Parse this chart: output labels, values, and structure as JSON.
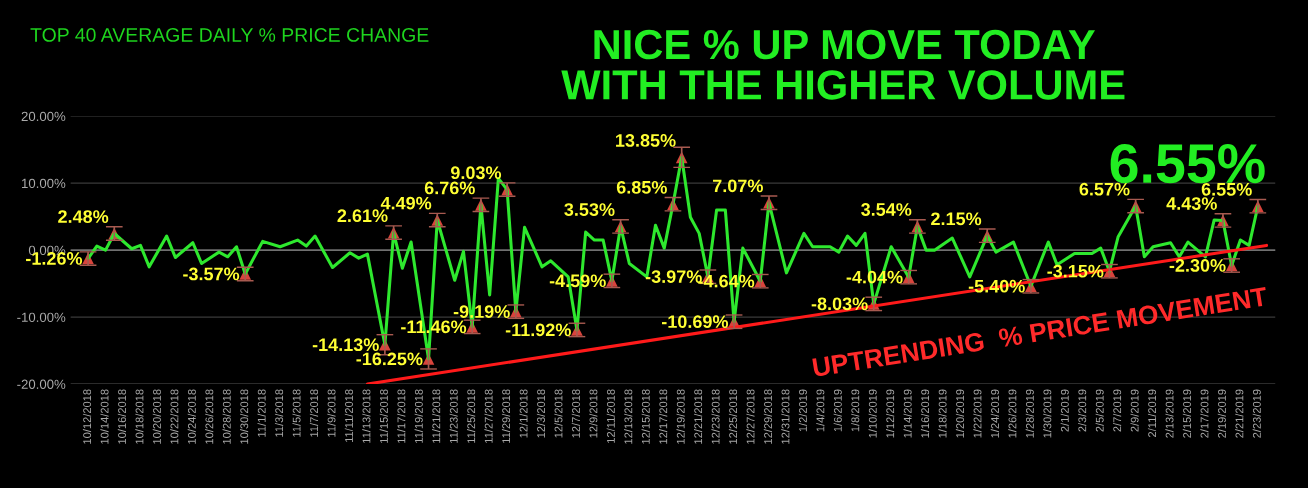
{
  "chart_data": {
    "type": "line",
    "title": "TOP 40 AVERAGE DAILY % PRICE CHANGE",
    "annotations": [
      "NICE % UP MOVE TODAY\nWITH THE HIGHER VOLUME",
      "6.55%",
      "UPTRENDING  % PRICE MOVEMENT"
    ],
    "series": [
      {
        "color": "#2ee82e",
        "x": [
          "2018-10-12",
          "2018-10-13",
          "2018-10-14",
          "2018-10-15",
          "2018-10-17",
          "2018-10-18",
          "2018-10-19",
          "2018-10-21",
          "2018-10-22",
          "2018-10-24",
          "2018-10-25",
          "2018-10-27",
          "2018-10-28",
          "2018-10-29",
          "2018-10-30",
          "2018-11-01",
          "2018-11-03",
          "2018-11-05",
          "2018-11-06",
          "2018-11-07",
          "2018-11-09",
          "2018-11-11",
          "2018-11-12",
          "2018-11-13",
          "2018-11-15",
          "2018-11-16",
          "2018-11-17",
          "2018-11-18",
          "2018-11-20",
          "2018-11-21",
          "2018-11-23",
          "2018-11-24",
          "2018-11-25",
          "2018-11-26",
          "2018-11-27",
          "2018-11-28",
          "2018-11-29",
          "2018-11-30",
          "2018-12-01",
          "2018-12-03",
          "2018-12-04",
          "2018-12-06",
          "2018-12-07",
          "2018-12-08",
          "2018-12-09",
          "2018-12-10",
          "2018-12-11",
          "2018-12-12",
          "2018-12-13",
          "2018-12-15",
          "2018-12-16",
          "2018-12-17",
          "2018-12-18",
          "2018-12-19",
          "2018-12-20",
          "2018-12-21",
          "2018-12-22",
          "2018-12-23",
          "2018-12-24",
          "2018-12-25",
          "2018-12-26",
          "2018-12-28",
          "2018-12-29",
          "2018-12-31",
          "2019-01-02",
          "2019-01-03",
          "2019-01-05",
          "2019-01-06",
          "2019-01-07",
          "2019-01-08",
          "2019-01-09",
          "2019-01-10",
          "2019-01-12",
          "2019-01-14",
          "2019-01-15",
          "2019-01-16",
          "2019-01-17",
          "2019-01-19",
          "2019-01-21",
          "2019-01-23",
          "2019-01-24",
          "2019-01-26",
          "2019-01-28",
          "2019-01-30",
          "2019-01-31",
          "2019-02-02",
          "2019-02-04",
          "2019-02-05",
          "2019-02-06",
          "2019-02-07",
          "2019-02-09",
          "2019-02-10",
          "2019-02-11",
          "2019-02-13",
          "2019-02-14",
          "2019-02-15",
          "2019-02-17",
          "2019-02-18",
          "2019-02-19",
          "2019-02-20",
          "2019-02-21",
          "2019-02-22",
          "2019-02-23"
        ],
        "values": [
          -1.26,
          0.6,
          0,
          2.48,
          0.2,
          0.7,
          -2.5,
          2.1,
          -1.1,
          1.1,
          -2.0,
          -0.3,
          -1.0,
          0.5,
          -3.57,
          1.3,
          0.5,
          1.5,
          0.6,
          2.1,
          -2.6,
          -0.4,
          -1.2,
          -0.6,
          -14.13,
          2.61,
          -2.7,
          1.2,
          -16.25,
          4.49,
          -4.5,
          -0.2,
          -11.46,
          6.76,
          -6.7,
          10.7,
          9.03,
          -9.19,
          3.4,
          -2.5,
          -1.6,
          -4.0,
          -11.92,
          2.7,
          1.5,
          1.5,
          -4.59,
          3.53,
          -2.0,
          -4.0,
          3.7,
          0.3,
          6.85,
          13.85,
          4.9,
          2.5,
          -3.97,
          6.0,
          6.0,
          -10.69,
          0.3,
          -4.64,
          7.07,
          -3.4,
          2.5,
          0.5,
          0.5,
          -0.3,
          2.1,
          0.7,
          2.5,
          -8.03,
          0.5,
          -4.04,
          3.54,
          0,
          0,
          1.8,
          -4.0,
          2.15,
          -0.3,
          1.2,
          -5.4,
          1.2,
          -2.2,
          -0.5,
          -0.5,
          0.3,
          -3.15,
          2.0,
          6.57,
          -1.0,
          0.5,
          1.1,
          -1.0,
          1.2,
          -1.0,
          4.5,
          4.43,
          -2.3,
          1.5,
          0.7,
          6.55
        ]
      },
      {
        "type": "scatter",
        "marker": "triangle",
        "color": "#d9443c",
        "x": [
          "2018-10-12",
          "2018-10-15",
          "2018-10-30",
          "2018-11-15",
          "2018-11-16",
          "2018-11-20",
          "2018-11-21",
          "2018-11-25",
          "2018-11-26",
          "2018-11-29",
          "2018-11-30",
          "2018-12-07",
          "2018-12-11",
          "2018-12-12",
          "2018-12-18",
          "2018-12-19",
          "2018-12-22",
          "2018-12-25",
          "2018-12-28",
          "2018-12-29",
          "2019-01-10",
          "2019-01-14",
          "2019-01-15",
          "2019-01-23",
          "2019-01-28",
          "2019-02-06",
          "2019-02-09",
          "2019-02-19",
          "2019-02-20",
          "2019-02-23"
        ],
        "values": [
          -1.26,
          2.48,
          -3.57,
          -14.13,
          2.61,
          -16.25,
          4.49,
          -11.46,
          6.76,
          9.03,
          -9.19,
          -11.92,
          -4.59,
          3.53,
          6.85,
          13.85,
          -3.97,
          -10.69,
          -4.64,
          7.07,
          -8.03,
          -4.04,
          3.54,
          2.15,
          -5.4,
          -3.15,
          6.57,
          4.43,
          -2.3,
          6.55
        ],
        "errors": [
          1,
          1,
          1,
          1.5,
          1,
          1.5,
          1,
          1,
          1,
          1,
          1,
          1,
          1,
          1,
          1,
          1.5,
          1,
          1,
          1,
          1,
          1,
          1,
          1,
          1,
          1,
          1,
          1,
          1,
          1,
          1
        ],
        "value_labels": [
          "-1.26%",
          "2.48%",
          "-3.57%",
          "-14.13%",
          "2.61%",
          "-16.25%",
          "4.49%",
          "-11.46%",
          "6.76%",
          "9.03%",
          "-9.19%",
          "-11.92%",
          "-4.59%",
          "3.53%",
          "6.85%",
          "13.85%",
          "-3.97%",
          "-10.69%",
          "-4.64%",
          "7.07%",
          "-8.03%",
          "-4.04%",
          "3.54%",
          "2.15%",
          "-5.40%",
          "-3.15%",
          "6.57%",
          "4.43%",
          "-2.30%",
          "6.55%"
        ]
      },
      {
        "color": "#ff1a1a",
        "x": [
          "2018-11-13",
          "2019-02-24"
        ],
        "values": [
          -20,
          0.7
        ]
      }
    ],
    "xlim": [
      "2018-10-10",
      "2019-02-25"
    ],
    "ylim": [
      -20,
      20
    ],
    "yticks": [
      {
        "value": -20,
        "label": "-20.00%"
      },
      {
        "value": -10,
        "label": "-10.00%"
      },
      {
        "value": 0,
        "label": "0.00%"
      },
      {
        "value": 10,
        "label": "10.00%"
      },
      {
        "value": 20,
        "label": "20.00%"
      }
    ],
    "xticks": [
      {
        "value": "2018-10-12",
        "label": "10/12/2018"
      },
      {
        "value": "2018-10-14",
        "label": "10/14/2018"
      },
      {
        "value": "2018-10-16",
        "label": "10/16/2018"
      },
      {
        "value": "2018-10-18",
        "label": "10/18/2018"
      },
      {
        "value": "2018-10-20",
        "label": "10/20/2018"
      },
      {
        "value": "2018-10-22",
        "label": "10/22/2018"
      },
      {
        "value": "2018-10-24",
        "label": "10/24/2018"
      },
      {
        "value": "2018-10-26",
        "label": "10/26/2018"
      },
      {
        "value": "2018-10-28",
        "label": "10/28/2018"
      },
      {
        "value": "2018-10-30",
        "label": "10/30/2018"
      },
      {
        "value": "2018-11-01",
        "label": "11/1/2018"
      },
      {
        "value": "2018-11-03",
        "label": "11/3/2018"
      },
      {
        "value": "2018-11-05",
        "label": "11/5/2018"
      },
      {
        "value": "2018-11-07",
        "label": "11/7/2018"
      },
      {
        "value": "2018-11-09",
        "label": "11/9/2018"
      },
      {
        "value": "2018-11-11",
        "label": "11/11/2018"
      },
      {
        "value": "2018-11-13",
        "label": "11/13/2018"
      },
      {
        "value": "2018-11-15",
        "label": "11/15/2018"
      },
      {
        "value": "2018-11-17",
        "label": "11/17/2018"
      },
      {
        "value": "2018-11-19",
        "label": "11/19/2018"
      },
      {
        "value": "2018-11-21",
        "label": "11/21/2018"
      },
      {
        "value": "2018-11-23",
        "label": "11/23/2018"
      },
      {
        "value": "2018-11-25",
        "label": "11/25/2018"
      },
      {
        "value": "2018-11-27",
        "label": "11/27/2018"
      },
      {
        "value": "2018-11-29",
        "label": "11/29/2018"
      },
      {
        "value": "2018-12-01",
        "label": "12/1/2018"
      },
      {
        "value": "2018-12-03",
        "label": "12/3/2018"
      },
      {
        "value": "2018-12-05",
        "label": "12/5/2018"
      },
      {
        "value": "2018-12-07",
        "label": "12/7/2018"
      },
      {
        "value": "2018-12-09",
        "label": "12/9/2018"
      },
      {
        "value": "2018-12-11",
        "label": "12/11/2018"
      },
      {
        "value": "2018-12-13",
        "label": "12/13/2018"
      },
      {
        "value": "2018-12-15",
        "label": "12/15/2018"
      },
      {
        "value": "2018-12-17",
        "label": "12/17/2018"
      },
      {
        "value": "2018-12-19",
        "label": "12/19/2018"
      },
      {
        "value": "2018-12-21",
        "label": "12/21/2018"
      },
      {
        "value": "2018-12-23",
        "label": "12/23/2018"
      },
      {
        "value": "2018-12-25",
        "label": "12/25/2018"
      },
      {
        "value": "2018-12-27",
        "label": "12/27/2018"
      },
      {
        "value": "2018-12-29",
        "label": "12/29/2018"
      },
      {
        "value": "2018-12-31",
        "label": "12/31/2018"
      },
      {
        "value": "2019-01-02",
        "label": "1/2/2019"
      },
      {
        "value": "2019-01-04",
        "label": "1/4/2019"
      },
      {
        "value": "2019-01-06",
        "label": "1/6/2019"
      },
      {
        "value": "2019-01-08",
        "label": "1/8/2019"
      },
      {
        "value": "2019-01-10",
        "label": "1/10/2019"
      },
      {
        "value": "2019-01-12",
        "label": "1/12/2019"
      },
      {
        "value": "2019-01-14",
        "label": "1/14/2019"
      },
      {
        "value": "2019-01-16",
        "label": "1/16/2019"
      },
      {
        "value": "2019-01-18",
        "label": "1/18/2019"
      },
      {
        "value": "2019-01-20",
        "label": "1/20/2019"
      },
      {
        "value": "2019-01-22",
        "label": "1/22/2019"
      },
      {
        "value": "2019-01-24",
        "label": "1/24/2019"
      },
      {
        "value": "2019-01-26",
        "label": "1/26/2019"
      },
      {
        "value": "2019-01-28",
        "label": "1/28/2019"
      },
      {
        "value": "2019-01-30",
        "label": "1/30/2019"
      },
      {
        "value": "2019-02-01",
        "label": "2/1/2019"
      },
      {
        "value": "2019-02-03",
        "label": "2/3/2019"
      },
      {
        "value": "2019-02-05",
        "label": "2/5/2019"
      },
      {
        "value": "2019-02-07",
        "label": "2/7/2019"
      },
      {
        "value": "2019-02-09",
        "label": "2/9/2019"
      },
      {
        "value": "2019-02-11",
        "label": "2/11/2019"
      },
      {
        "value": "2019-02-13",
        "label": "2/13/2019"
      },
      {
        "value": "2019-02-15",
        "label": "2/15/2019"
      },
      {
        "value": "2019-02-17",
        "label": "2/17/2019"
      },
      {
        "value": "2019-02-19",
        "label": "2/19/2019"
      },
      {
        "value": "2019-02-21",
        "label": "2/21/2019"
      },
      {
        "value": "2019-02-23",
        "label": "2/23/2019"
      }
    ],
    "grid": "y",
    "legend": false
  }
}
